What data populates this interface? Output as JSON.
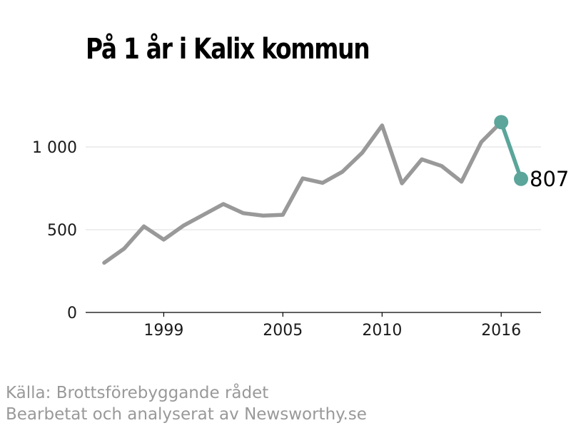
{
  "chart_data": {
    "type": "line",
    "title": "På 1 år i Kalix kommun",
    "x": [
      1996,
      1997,
      1998,
      1999,
      2000,
      2001,
      2002,
      2003,
      2004,
      2005,
      2006,
      2007,
      2008,
      2009,
      2010,
      2011,
      2012,
      2013,
      2014,
      2015,
      2016,
      2017
    ],
    "values": [
      300,
      385,
      520,
      440,
      525,
      590,
      655,
      600,
      585,
      590,
      810,
      783,
      850,
      965,
      1130,
      780,
      925,
      885,
      790,
      1030,
      1150,
      807
    ],
    "x_ticks": [
      "1999",
      "2005",
      "2010",
      "2016"
    ],
    "y_ticks": [
      "0",
      "500",
      "1 000"
    ],
    "ylim": [
      0,
      1250
    ],
    "xlim": [
      1996,
      2017
    ],
    "grid": "horizontal",
    "last_value_label": "807",
    "colors": {
      "line": "#999999",
      "highlight": "#5ba59a",
      "grid": "#dddddd",
      "axis": "#000000"
    }
  },
  "source": {
    "line1": "Källa: Brottsförebyggande rådet",
    "line2": "Bearbetat och analyserat av Newsworthy.se"
  }
}
